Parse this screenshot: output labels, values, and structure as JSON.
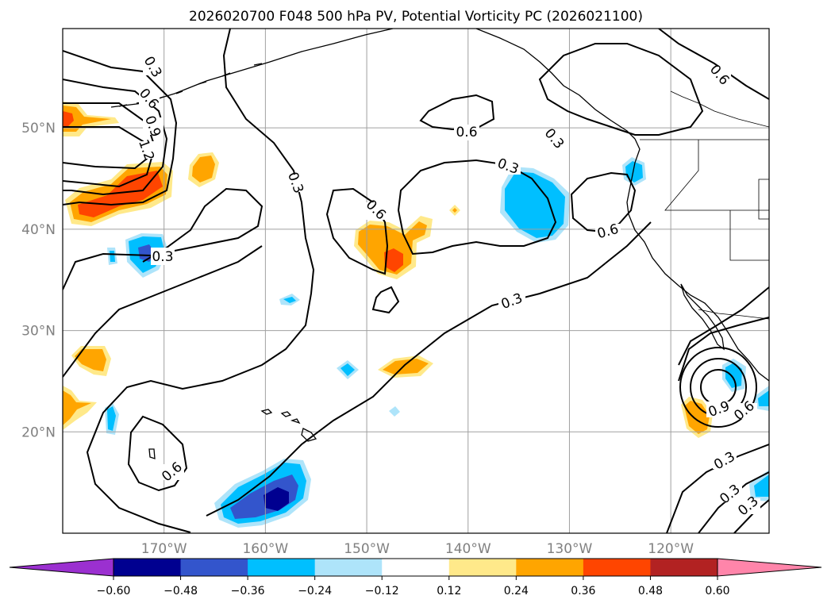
{
  "map": {
    "title": "2026020700 F048 500 hPa PV, Potential Vorticity PC (2026021100)",
    "lon_ticks": [
      {
        "lon": -170,
        "label": "170°W"
      },
      {
        "lon": -160,
        "label": "160°W"
      },
      {
        "lon": -150,
        "label": "150°W"
      },
      {
        "lon": -140,
        "label": "140°W"
      },
      {
        "lon": -130,
        "label": "130°W"
      },
      {
        "lon": -120,
        "label": "120°W"
      }
    ],
    "lat_ticks": [
      {
        "lat": 50,
        "label": "50°N"
      },
      {
        "lat": 40,
        "label": "40°N"
      },
      {
        "lat": 30,
        "label": "30°N"
      },
      {
        "lat": 20,
        "label": "20°N"
      }
    ],
    "extent": {
      "lon_min": -180,
      "lon_max": -110.3,
      "lat_min": 10,
      "lat_max": 59.8
    },
    "gridlines": true,
    "contour_labels": [
      "0.3",
      "0.6",
      "0.9",
      "1.2"
    ]
  },
  "colorbar": {
    "ticks": [
      "−0.60",
      "−0.48",
      "−0.36",
      "−0.24",
      "−0.12",
      "0.12",
      "0.24",
      "0.36",
      "0.48",
      "0.60"
    ],
    "under_color": "#9b30d0",
    "over_color": "#ff85aa",
    "colors": [
      "#000090",
      "#3355cc",
      "#00bfff",
      "#aee4fa",
      "#ffffff",
      "#ffe98a",
      "#ffa500",
      "#ff4500",
      "#b22222"
    ]
  },
  "palette": {
    "neg1": "#aee4fa",
    "neg2": "#00bfff",
    "neg3": "#3355cc",
    "neg4": "#000090",
    "pos1": "#ffe98a",
    "pos2": "#ffa500",
    "pos3": "#ff4500"
  }
}
